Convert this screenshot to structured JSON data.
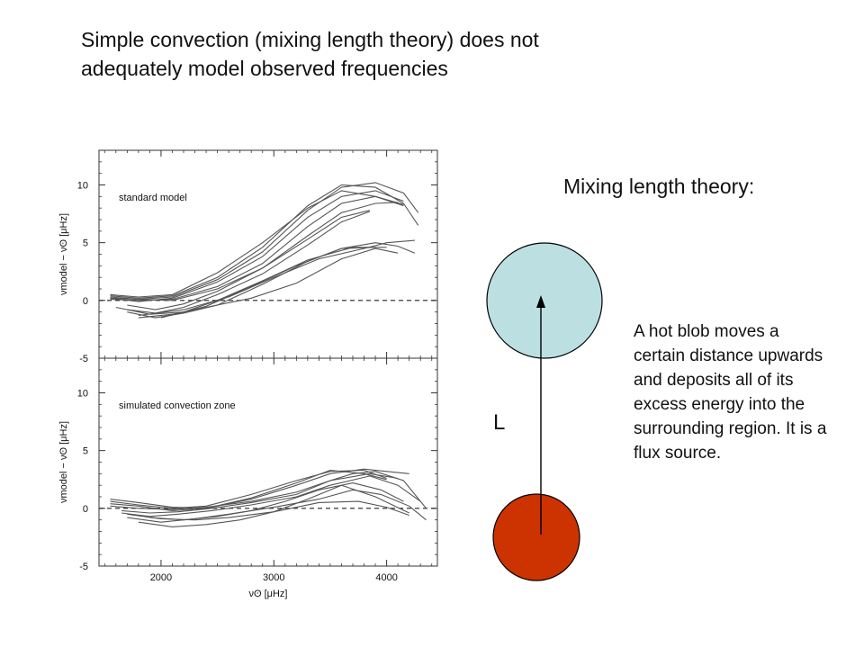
{
  "title": {
    "line1": "Simple convection (mixing length theory) does not",
    "line2": "adequately model observed frequencies"
  },
  "diagram": {
    "heading": "Mixing length theory:",
    "length_label": "L",
    "description": "A hot blob moves a certain distance upwards and deposits all of its excess energy into the surrounding region. It is a flux source.",
    "colors": {
      "upper_blob": "#bcdfe2",
      "lower_blob": "#cc3300",
      "arrow": "#000000"
    }
  },
  "chart_data": [
    {
      "type": "line",
      "panel_label": "standard model",
      "xlabel": "νʘ [μHz]",
      "ylabel": "νmodel − νʘ [μHz]",
      "ylim": [
        -5,
        13
      ],
      "yticks": [
        -5,
        0,
        5,
        10
      ],
      "xlim": [
        1450,
        4450
      ],
      "xticks": [
        2000,
        3000,
        4000
      ],
      "reference_line": 0,
      "series_color": "#555555",
      "series": [
        {
          "x": [
            1550,
            1800,
            2100,
            2500,
            2900,
            3300,
            3600,
            3900,
            4150,
            4280
          ],
          "y": [
            0.3,
            0.1,
            0.3,
            1.8,
            4.2,
            7.8,
            9.8,
            10.2,
            9.3,
            7.6
          ]
        },
        {
          "x": [
            1550,
            1800,
            2100,
            2500,
            2900,
            3300,
            3600,
            3900,
            4150,
            4280
          ],
          "y": [
            0.4,
            0.2,
            0.4,
            2.0,
            4.6,
            8.2,
            10.0,
            9.8,
            8.4,
            6.5
          ]
        },
        {
          "x": [
            1550,
            1800,
            2100,
            2500,
            2900,
            3300,
            3600,
            3900,
            4150
          ],
          "y": [
            0.2,
            -0.1,
            0.2,
            1.6,
            3.8,
            7.2,
            9.0,
            9.5,
            8.6
          ]
        },
        {
          "x": [
            1550,
            1800,
            2100,
            2500,
            2900,
            3300,
            3600,
            3900,
            4150
          ],
          "y": [
            0.5,
            0.3,
            0.5,
            2.4,
            5.0,
            8.0,
            9.5,
            9.0,
            8.3
          ]
        },
        {
          "x": [
            1550,
            1800,
            2100,
            2500,
            2900,
            3300,
            3600,
            3900,
            4150
          ],
          "y": [
            0.1,
            0.0,
            0.1,
            1.2,
            3.2,
            6.4,
            8.4,
            9.0,
            8.2
          ]
        },
        {
          "x": [
            1550,
            1800,
            2100,
            2500,
            2900,
            3300,
            3600,
            3900,
            4100
          ],
          "y": [
            0.2,
            0.1,
            0.0,
            1.0,
            2.8,
            5.6,
            7.6,
            8.4,
            8.5
          ]
        },
        {
          "x": [
            1700,
            1950,
            2200,
            2500,
            2900,
            3300,
            3600,
            3850
          ],
          "y": [
            -0.8,
            -1.1,
            -0.6,
            0.5,
            2.3,
            4.8,
            6.8,
            7.7
          ]
        },
        {
          "x": [
            1700,
            1950,
            2200,
            2500,
            2900,
            3300,
            3600,
            3850
          ],
          "y": [
            -0.4,
            -0.8,
            -0.3,
            0.8,
            2.8,
            5.3,
            7.2,
            7.8
          ]
        },
        {
          "x": [
            1700,
            1950,
            2200,
            2500,
            2900,
            3300,
            3600,
            3900
          ],
          "y": [
            -1.0,
            -1.5,
            -1.1,
            -0.4,
            1.4,
            3.4,
            4.5,
            4.6
          ]
        },
        {
          "x": [
            1800,
            2100,
            2400,
            2800,
            3200,
            3600,
            3900,
            4100
          ],
          "y": [
            -1.5,
            -1.2,
            -0.6,
            0.2,
            1.5,
            3.6,
            4.5,
            4.1
          ]
        },
        {
          "x": [
            1600,
            1900,
            2200,
            2500,
            2900,
            3300,
            3700,
            4000
          ],
          "y": [
            -0.6,
            -1.2,
            -1.0,
            0.0,
            1.7,
            3.5,
            4.6,
            4.6
          ]
        },
        {
          "x": [
            1800,
            2200,
            2600,
            3000,
            3400,
            3800,
            4000,
            4250
          ],
          "y": [
            -1.3,
            -0.8,
            0.3,
            2.0,
            3.6,
            4.5,
            5.0,
            5.2
          ]
        },
        {
          "x": [
            2000,
            2400,
            2800,
            3200,
            3600,
            3900,
            4100,
            4250
          ],
          "y": [
            -1.5,
            -0.5,
            1.2,
            3.0,
            4.5,
            5.0,
            4.7,
            4.1
          ]
        }
      ]
    },
    {
      "type": "line",
      "panel_label": "simulated convection zone",
      "xlabel": "νʘ [μHz]",
      "ylabel": "νmodel − νʘ [μHz]",
      "ylim": [
        -5,
        13
      ],
      "yticks": [
        -5,
        0,
        5,
        10
      ],
      "xticks": [
        2000,
        3000,
        4000
      ],
      "xlim": [
        1450,
        4450
      ],
      "reference_line": 0,
      "series_color": "#555555",
      "series": [
        {
          "x": [
            1550,
            1800,
            2100,
            2400,
            2800,
            3200,
            3500,
            3800,
            4000,
            4200
          ],
          "y": [
            0.8,
            0.5,
            0.1,
            0.0,
            0.8,
            2.0,
            3.0,
            3.4,
            3.2,
            3.0
          ]
        },
        {
          "x": [
            1550,
            1800,
            2100,
            2400,
            2800,
            3200,
            3500,
            3800,
            4000
          ],
          "y": [
            0.6,
            0.3,
            0.0,
            0.2,
            1.2,
            2.4,
            3.2,
            3.3,
            2.6
          ]
        },
        {
          "x": [
            1550,
            1800,
            2100,
            2400,
            2800,
            3200,
            3500,
            3800,
            4000
          ],
          "y": [
            0.4,
            0.2,
            -0.2,
            0.0,
            0.9,
            2.2,
            3.3,
            3.0,
            2.5
          ]
        },
        {
          "x": [
            1550,
            1800,
            2100,
            2400,
            2800,
            3200,
            3500,
            3700,
            3900,
            4150,
            4350
          ],
          "y": [
            0.2,
            0.0,
            -0.1,
            0.1,
            0.6,
            1.4,
            2.4,
            3.0,
            3.2,
            2.4,
            0.0
          ]
        },
        {
          "x": [
            1650,
            1900,
            2150,
            2450,
            2800,
            3200,
            3500,
            3850,
            4100
          ],
          "y": [
            -0.2,
            -0.4,
            -0.3,
            0.0,
            0.5,
            1.2,
            2.4,
            3.0,
            2.6
          ]
        },
        {
          "x": [
            1650,
            1900,
            2150,
            2450,
            2800,
            3200,
            3500,
            3850,
            4100,
            4300
          ],
          "y": [
            -0.4,
            -0.7,
            -0.5,
            -0.2,
            0.3,
            1.0,
            2.0,
            2.8,
            2.0,
            0.6
          ]
        },
        {
          "x": [
            1700,
            2000,
            2300,
            2600,
            3000,
            3400,
            3700,
            3950,
            4200,
            4350
          ],
          "y": [
            -0.8,
            -1.2,
            -0.9,
            -0.5,
            0.1,
            0.8,
            1.6,
            1.2,
            0.2,
            -1.0
          ]
        },
        {
          "x": [
            1700,
            2000,
            2300,
            2600,
            3000,
            3400,
            3750,
            4000,
            4200
          ],
          "y": [
            -0.5,
            -0.9,
            -1.0,
            -0.8,
            -0.3,
            0.5,
            0.6,
            0.1,
            -0.6
          ]
        },
        {
          "x": [
            1800,
            2100,
            2400,
            2700,
            3000,
            3300,
            3600,
            3900,
            4200
          ],
          "y": [
            -1.2,
            -1.6,
            -1.4,
            -1.0,
            -0.3,
            0.8,
            2.0,
            1.0,
            -0.4
          ]
        },
        {
          "x": [
            1900,
            2200,
            2500,
            2800,
            3100,
            3400,
            3700,
            3950,
            4150
          ],
          "y": [
            -0.8,
            -1.0,
            -0.7,
            -0.2,
            0.6,
            1.6,
            2.2,
            1.6,
            0.6
          ]
        }
      ]
    }
  ]
}
